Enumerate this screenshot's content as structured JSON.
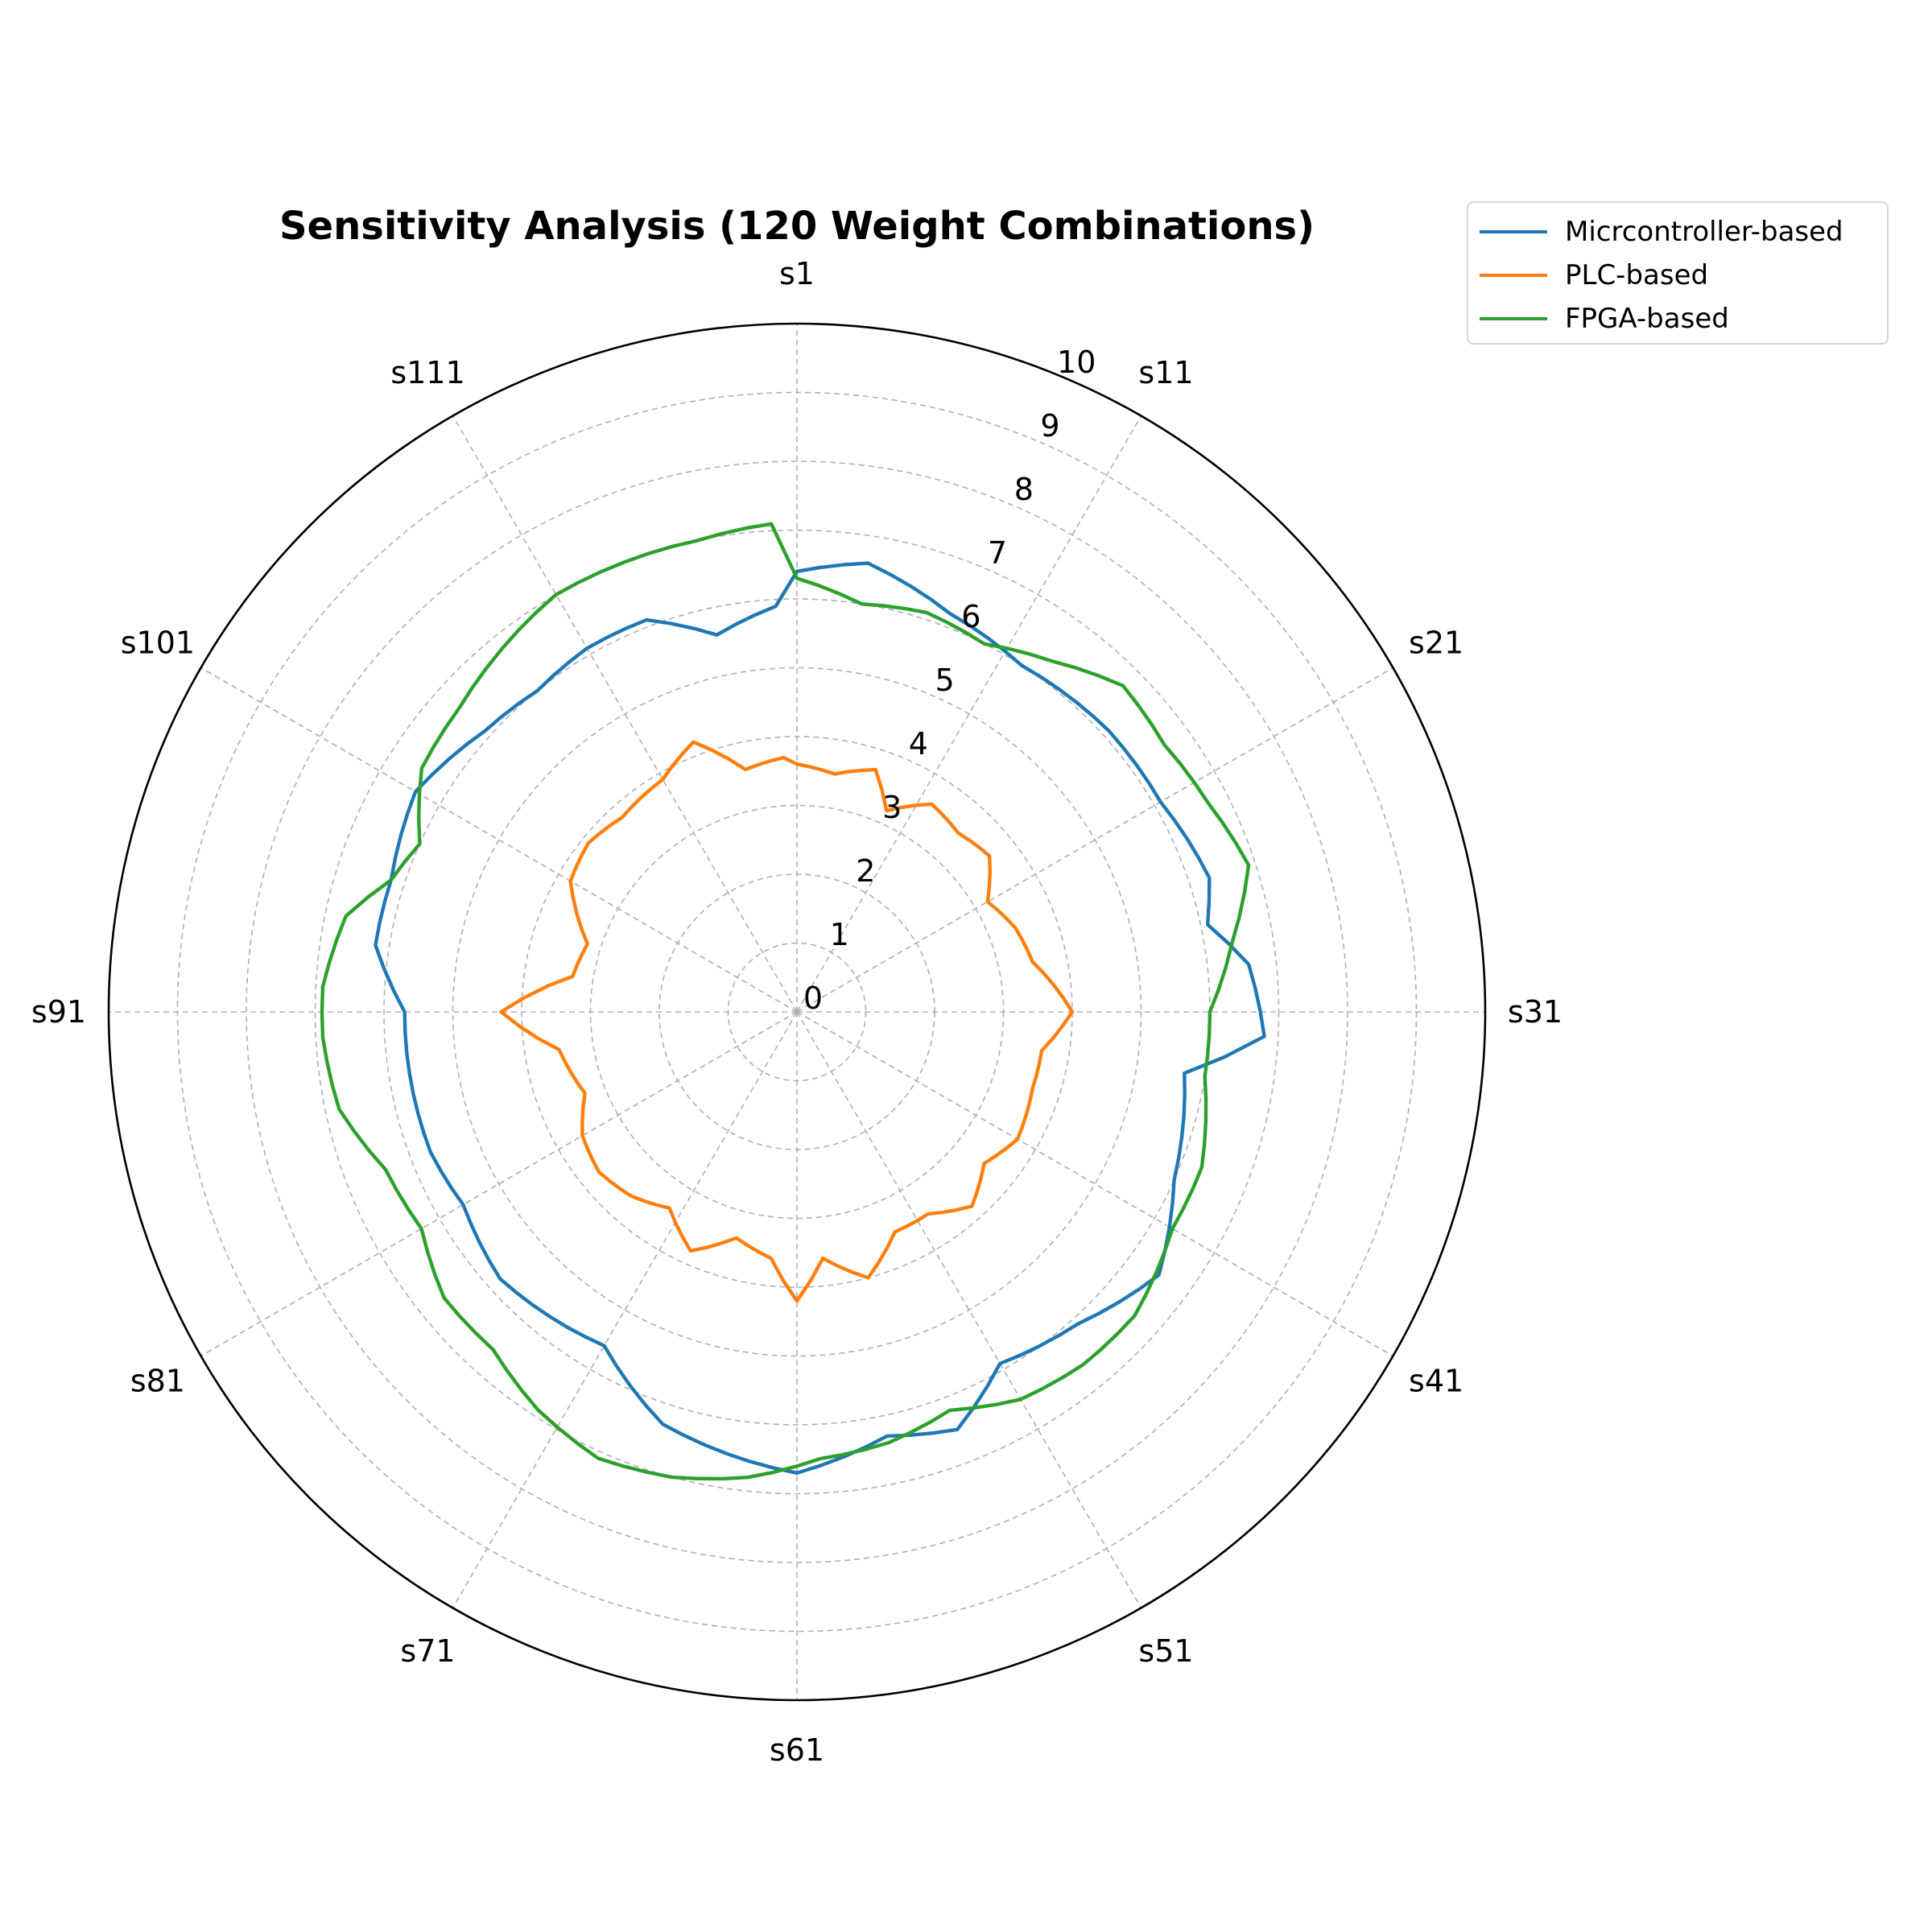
{
  "chart_data": {
    "type": "radar",
    "title": "Sensitivity Analysis (120 Weight Combinations)",
    "rlim": [
      0,
      10
    ],
    "radial_ticks": [
      "0",
      "1",
      "2",
      "3",
      "4",
      "5",
      "6",
      "7",
      "8",
      "9",
      "10"
    ],
    "categories_labeled": [
      "s1",
      "s11",
      "s21",
      "s31",
      "s41",
      "s51",
      "s61",
      "s71",
      "s81",
      "s91",
      "s101",
      "s111"
    ],
    "direction": "clockwise",
    "start": "top",
    "grid": true,
    "legend_position": "top-right",
    "series": [
      {
        "name": "Micrcontroller-based",
        "color": "#1f77b4",
        "anchors": [
          [
            0,
            6.4
          ],
          [
            3,
            6.6
          ],
          [
            7,
            6.2
          ],
          [
            11,
            6.0
          ],
          [
            16,
            6.1
          ],
          [
            20,
            6.1
          ],
          [
            24,
            6.3
          ],
          [
            26,
            6.1
          ],
          [
            28,
            6.6
          ],
          [
            31,
            6.8
          ],
          [
            33,
            5.7
          ],
          [
            38,
            6.0
          ],
          [
            42,
            6.5
          ],
          [
            46,
            6.1
          ],
          [
            50,
            5.9
          ],
          [
            53,
            6.5
          ],
          [
            56,
            6.3
          ],
          [
            60,
            6.7
          ],
          [
            63,
            6.5
          ],
          [
            66,
            6.3
          ],
          [
            70,
            5.6
          ],
          [
            73,
            5.7
          ],
          [
            76,
            5.8
          ],
          [
            80,
            5.6
          ],
          [
            83,
            5.7
          ],
          [
            86,
            5.7
          ],
          [
            90,
            5.7
          ],
          [
            93,
            6.2
          ],
          [
            96,
            6.2
          ],
          [
            100,
            6.4
          ],
          [
            104,
            6.1
          ],
          [
            107,
            6.0
          ],
          [
            110,
            6.1
          ],
          [
            113,
            6.1
          ],
          [
            116,
            5.6
          ],
          [
            119,
            5.9
          ]
        ]
      },
      {
        "name": "PLC-based",
        "color": "#ff7f0e",
        "anchors": [
          [
            0,
            3.6
          ],
          [
            3,
            3.5
          ],
          [
            6,
            3.7
          ],
          [
            8,
            3.2
          ],
          [
            11,
            3.6
          ],
          [
            14,
            3.5
          ],
          [
            17,
            3.6
          ],
          [
            20,
            3.2
          ],
          [
            23,
            3.4
          ],
          [
            26,
            3.5
          ],
          [
            30,
            4.0
          ],
          [
            33,
            3.6
          ],
          [
            36,
            3.6
          ],
          [
            40,
            3.7
          ],
          [
            43,
            3.5
          ],
          [
            46,
            3.8
          ],
          [
            49,
            3.5
          ],
          [
            52,
            3.5
          ],
          [
            55,
            4.0
          ],
          [
            58,
            3.6
          ],
          [
            60,
            4.2
          ],
          [
            62,
            3.6
          ],
          [
            65,
            3.4
          ],
          [
            68,
            3.8
          ],
          [
            71,
            3.4
          ],
          [
            74,
            3.6
          ],
          [
            77,
            3.7
          ],
          [
            80,
            3.6
          ],
          [
            83,
            3.3
          ],
          [
            87,
            3.5
          ],
          [
            90,
            4.3
          ],
          [
            93,
            3.3
          ],
          [
            96,
            3.2
          ],
          [
            100,
            3.8
          ],
          [
            103,
            3.9
          ],
          [
            106,
            3.8
          ],
          [
            110,
            3.9
          ],
          [
            113,
            4.2
          ],
          [
            116,
            3.6
          ],
          [
            119,
            3.7
          ]
        ]
      },
      {
        "name": "FPGA-based",
        "color": "#2ca02c",
        "anchors": [
          [
            0,
            6.3
          ],
          [
            3,
            6.0
          ],
          [
            6,
            6.1
          ],
          [
            9,
            6.0
          ],
          [
            12,
            6.3
          ],
          [
            15,
            6.7
          ],
          [
            18,
            6.6
          ],
          [
            21,
            6.7
          ],
          [
            24,
            6.9
          ],
          [
            27,
            6.4
          ],
          [
            30,
            6.0
          ],
          [
            33,
            6.0
          ],
          [
            37,
            6.3
          ],
          [
            40,
            6.3
          ],
          [
            44,
            6.6
          ],
          [
            47,
            6.6
          ],
          [
            50,
            6.5
          ],
          [
            53,
            6.2
          ],
          [
            56,
            6.4
          ],
          [
            59,
            6.5
          ],
          [
            62,
            6.8
          ],
          [
            65,
            7.0
          ],
          [
            68,
            7.1
          ],
          [
            71,
            6.9
          ],
          [
            74,
            6.6
          ],
          [
            77,
            6.6
          ],
          [
            80,
            6.3
          ],
          [
            83,
            6.4
          ],
          [
            86,
            6.8
          ],
          [
            89,
            6.9
          ],
          [
            91,
            6.9
          ],
          [
            94,
            6.7
          ],
          [
            96,
            6.2
          ],
          [
            98,
            6.0
          ],
          [
            101,
            6.5
          ],
          [
            104,
            6.6
          ],
          [
            107,
            6.8
          ],
          [
            110,
            7.0
          ],
          [
            113,
            7.0
          ],
          [
            116,
            7.0
          ],
          [
            119,
            7.1
          ]
        ]
      }
    ]
  }
}
